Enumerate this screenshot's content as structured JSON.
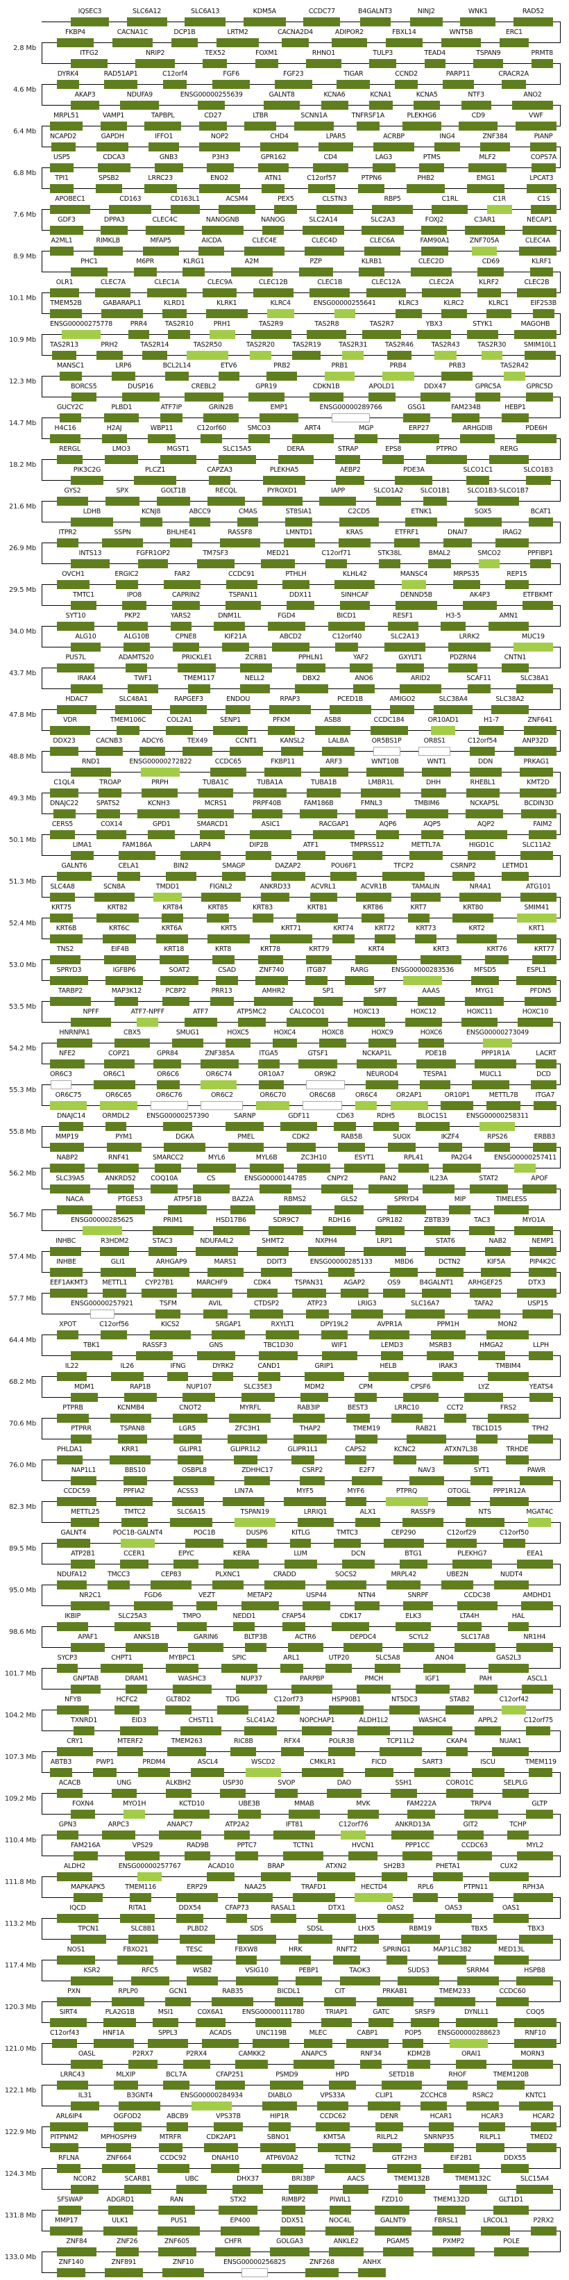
{
  "colors": {
    "gene": "#5f7f1f",
    "highlight": "#a3cd48",
    "outline_border": "#aaaaaa",
    "line": "#000000"
  },
  "gene_styles": {
    "highlight": [
      "C1R",
      "ZNF705A",
      "KLRC4",
      "ENSG00000255641",
      "ENSG00000275778",
      "PRH1",
      "TAS2R50",
      "TAS2R20",
      "TAS2R31",
      "TAS2R43",
      "TAS2R30",
      "PRB1",
      "PRB4",
      "TAS2R42",
      "SMCO2",
      "MANSC4",
      "MUC19",
      "OR10AD1",
      "ENSG00000272822",
      "TMDD1",
      "SMIM41",
      "ENSG00000283536",
      "ATF7-NPFF",
      "ENSG00000273049",
      "OR6C74",
      "OR6C75",
      "OR6C65",
      "OR6C70",
      "OR6C4",
      "OR2AP1",
      "ENSG00000258311",
      "ENSG00000257411",
      "ENSG00000285625",
      "PTPRQ",
      "TSPAN19",
      "MGAT4C",
      "POC1B-GALNT4",
      "C12orf42",
      "WSCD2",
      "MYO1H",
      "C12orf76",
      "ENSG00000257767",
      "HECTD4",
      "ENSG00000288623",
      "ENSG00000284934"
    ],
    "outline": [
      "ENSG00000289766",
      "OR5BS1P",
      "OR8S1",
      "OR6C3",
      "OR9K2",
      "OR6C76",
      "OR6C2",
      "OR6C68",
      "ENSG00000257921",
      "ENSG00000256825"
    ]
  },
  "mb_labels": [
    "2.8 Mb",
    "4.6 Mb",
    "6.4 Mb",
    "6.8 Mb",
    "7.6 Mb",
    "8.9 Mb",
    "10.1 Mb",
    "10.9 Mb",
    "12.3 Mb",
    "14.7 Mb",
    "18.2 Mb",
    "21.6 Mb",
    "26.9 Mb",
    "29.5 Mb",
    "34.0 Mb",
    "43.7 Mb",
    "47.8 Mb",
    "48.8 Mb",
    "49.3 Mb",
    "50.1 Mb",
    "51.3 Mb",
    "52.4 Mb",
    "53.0 Mb",
    "53.5 Mb",
    "54.2 Mb",
    "55.3 Mb",
    "55.8 Mb",
    "56.2 Mb",
    "56.7 Mb",
    "57.4 Mb",
    "57.7 Mb",
    "64.4 Mb",
    "68.2 Mb",
    "70.6 Mb",
    "76.0 Mb",
    "82.3 Mb",
    "89.5 Mb",
    "95.0 Mb",
    "98.6 Mb",
    "101.7 Mb",
    "104.2 Mb",
    "107.3 Mb",
    "109.2 Mb",
    "110.4 Mb",
    "111.8 Mb",
    "113.2 Mb",
    "117.4 Mb",
    "120.3 Mb",
    "121.0 Mb",
    "122.1 Mb",
    "122.9 Mb",
    "124.3 Mb",
    "131.8 Mb",
    "133.0 Mb"
  ],
  "rows": [
    [
      "IQSEC3",
      "SLC6A12",
      "SLC6A13",
      "KDM5A",
      "CCDC77",
      "B4GALNT3",
      "NINJ2",
      "WNK1",
      "RAD52"
    ],
    [
      "FKBP4",
      "CACNA1C",
      "DCP1B",
      "LRTM2",
      "CACNA2D4",
      "ADIPOR2",
      "FBXL14",
      "WNT5B",
      "ERC1"
    ],
    [
      "ITFG2",
      "NRIP2",
      "TEX52",
      "FOXM1",
      "RHNO1",
      "TULP3",
      "TEAD4",
      "TSPAN9",
      "PRMT8"
    ],
    [
      "DYRK4",
      "RAD51AP1",
      "C12orf4",
      "FGF6",
      "FGF23",
      "TIGAR",
      "CCND2",
      "PARP11",
      "CRACR2A"
    ],
    [
      "AKAP3",
      "NDUFA9",
      "ENSG00000255639",
      "GALNT8",
      "KCNA6",
      "KCNA1",
      "KCNA5",
      "NTF3",
      "ANO2"
    ],
    [
      "MRPL51",
      "VAMP1",
      "TAPBPL",
      "CD27",
      "LTBR",
      "SCNN1A",
      "TNFRSF1A",
      "PLEKHG6",
      "CD9",
      "VWF"
    ],
    [
      "NCAPD2",
      "GAPDH",
      "IFFO1",
      "NOP2",
      "CHD4",
      "LPAR5",
      "ACRBP",
      "ING4",
      "ZNF384",
      "PIANP"
    ],
    [
      "USP5",
      "CDCA3",
      "GNB3",
      "P3H3",
      "GPR162",
      "CD4",
      "LAG3",
      "PTMS",
      "MLF2",
      "COPS7A"
    ],
    [
      "TPI1",
      "SPSB2",
      "LRRC23",
      "ENO2",
      "ATN1",
      "C12orf57",
      "PTPN6",
      "PHB2",
      "EMG1",
      "LPCAT3"
    ],
    [
      "APOBEC1",
      "CD163",
      "CD163L1",
      "ACSM4",
      "PEX5",
      "CLSTN3",
      "RBP5",
      "C1RL",
      "C1R",
      "C1S"
    ],
    [
      "GDF3",
      "DPPA3",
      "CLEC4C",
      "NANOGNB",
      "NANOG",
      "SLC2A14",
      "SLC2A3",
      "FOXJ2",
      "C3AR1",
      "NECAP1"
    ],
    [
      "A2ML1",
      "RIMKLB",
      "MFAP5",
      "AICDA",
      "CLEC4E",
      "CLEC4D",
      "CLEC6A",
      "FAM90A1",
      "ZNF705A",
      "CLEC4A"
    ],
    [
      "PHC1",
      "M6PR",
      "KLRG1",
      "A2M",
      "PZP",
      "KLRB1",
      "CLEC2D",
      "CD69",
      "KLRF1"
    ],
    [
      "OLR1",
      "CLEC7A",
      "CLEC1A",
      "CLEC9A",
      "CLEC12B",
      "CLEC1B",
      "CLEC12A",
      "CLEC2A",
      "KLRF2",
      "CLEC2B"
    ],
    [
      "TMEM52B",
      "GABARAPL1",
      "KLRD1",
      "KLRK1",
      "KLRC4",
      "ENSG00000255641",
      "KLRC3",
      "KLRC2",
      "KLRC1",
      "EIF2S3B"
    ],
    [
      "ENSG00000275778",
      "PRR4",
      "TAS2R10",
      "PRH1",
      "TAS2R9",
      "TAS2R8",
      "TAS2R7",
      "YBX3",
      "STYK1",
      "MAGOHB"
    ],
    [
      "TAS2R13",
      "PRH2",
      "TAS2R14",
      "TAS2R50",
      "TAS2R20",
      "TAS2R19",
      "TAS2R31",
      "TAS2R46",
      "TAS2R43",
      "TAS2R30",
      "SMIM10L1"
    ],
    [
      "MANSC1",
      "LRP6",
      "BCL2L14",
      "ETV6",
      "PRB2",
      "PRB1",
      "PRB4",
      "PRB3",
      "TAS2R42"
    ],
    [
      "BORCS5",
      "DUSP16",
      "CREBL2",
      "GPR19",
      "CDKN1B",
      "APOLD1",
      "DDX47",
      "GPRC5A",
      "GPRC5D"
    ],
    [
      "GUCY2C",
      "PLBD1",
      "ATF7IP",
      "GRIN2B",
      "EMP1",
      "ENSG00000289766",
      "GSG1",
      "FAM234B",
      "HEBP1"
    ],
    [
      "H4C16",
      "H2AJ",
      "WBP11",
      "C12orf60",
      "SMCO3",
      "ART4",
      "MGP",
      "ERP27",
      "ARHGDIB",
      "PDE6H"
    ],
    [
      "RERGL",
      "LMO3",
      "MGST1",
      "SLC15A5",
      "DERA",
      "STRAP",
      "EPS8",
      "PTPRO",
      "RERG"
    ],
    [
      "PIK3C2G",
      "PLCZ1",
      "CAPZA3",
      "PLEKHA5",
      "AEBP2",
      "PDE3A",
      "SLCO1C1",
      "SLCO1B3"
    ],
    [
      "GYS2",
      "SPX",
      "GOLT1B",
      "RECQL",
      "PYROXD1",
      "IAPP",
      "SLCO1A2",
      "SLCO1B1",
      "SLCO1B3-SLCO1B7"
    ],
    [
      "LDHB",
      "KCNJ8",
      "ABCC9",
      "CMAS",
      "ST8SIA1",
      "C2CD5",
      "ETNK1",
      "SOX5",
      "BCAT1"
    ],
    [
      "ITPR2",
      "SSPN",
      "BHLHE41",
      "RASSF8",
      "LMNTD1",
      "KRAS",
      "ETFRF1",
      "DNAI7",
      "IRAG2"
    ],
    [
      "INTS13",
      "FGFR1OP2",
      "TM7SF3",
      "MED21",
      "C12orf71",
      "STK38L",
      "BMAL2",
      "SMCO2",
      "PPFIBP1"
    ],
    [
      "OVCH1",
      "ERGIC2",
      "FAR2",
      "CCDC91",
      "PTHLH",
      "KLHL42",
      "MANSC4",
      "MRPS35",
      "REP15"
    ],
    [
      "TMTC1",
      "IPO8",
      "CAPRIN2",
      "TSPAN11",
      "DDX11",
      "SINHCAF",
      "DENND5B",
      "AK4P3",
      "ETFBKMT"
    ],
    [
      "SYT10",
      "PKP2",
      "YARS2",
      "DNM1L",
      "FGD4",
      "BICD1",
      "RESF1",
      "H3-5",
      "AMN1"
    ],
    [
      "ALG10",
      "ALG10B",
      "CPNE8",
      "KIF21A",
      "ABCD2",
      "C12orf40",
      "SLC2A13",
      "LRRK2",
      "MUC19"
    ],
    [
      "PUS7L",
      "ADAMTS20",
      "PRICKLE1",
      "ZCRB1",
      "PPHLN1",
      "YAF2",
      "GXYLT1",
      "PDZRN4",
      "CNTN1"
    ],
    [
      "IRAK4",
      "TWF1",
      "TMEM117",
      "NELL2",
      "DBX2",
      "ANO6",
      "ARID2",
      "SCAF11",
      "SLC38A1"
    ],
    [
      "HDAC7",
      "SLC48A1",
      "RAPGEF3",
      "ENDOU",
      "RPAP3",
      "PCED1B",
      "AMIGO2",
      "SLC38A4",
      "SLC38A2"
    ],
    [
      "VDR",
      "TMEM106C",
      "COL2A1",
      "SENP1",
      "PFKM",
      "ASB8",
      "CCDC184",
      "OR10AD1",
      "H1-7",
      "ZNF641"
    ],
    [
      "DDX23",
      "CACNB3",
      "ADCY6",
      "TEX49",
      "CCNT1",
      "KANSL2",
      "LALBA",
      "OR5BS1P",
      "OR8S1",
      "C12orf54",
      "ANP32D"
    ],
    [
      "RND1",
      "ENSG00000272822",
      "CCDC65",
      "FKBP11",
      "ARF3",
      "WNT10B",
      "WNT1",
      "DDN",
      "PRKAG1"
    ],
    [
      "C1QL4",
      "TROAP",
      "PRPH",
      "TUBA1C",
      "TUBA1A",
      "TUBA1B",
      "LMBR1L",
      "DHH",
      "RHEBL1",
      "KMT2D"
    ],
    [
      "DNAJC22",
      "SPATS2",
      "KCNH3",
      "MCRS1",
      "PRPF40B",
      "FAM186B",
      "FMNL3",
      "TMBIM6",
      "NCKAP5L",
      "BCDIN3D"
    ],
    [
      "CERS5",
      "COX14",
      "GPD1",
      "SMARCD1",
      "ASIC1",
      "RACGAP1",
      "AQP6",
      "AQP5",
      "AQP2",
      "FAIM2"
    ],
    [
      "LIMA1",
      "FAM186A",
      "LARP4",
      "DIP2B",
      "ATF1",
      "TMPRSS12",
      "METTL7A",
      "HIGD1C",
      "SLC11A2"
    ],
    [
      "GALNT6",
      "CELA1",
      "BIN2",
      "SMAGP",
      "DAZAP2",
      "POU6F1",
      "TFCP2",
      "CSRNP2",
      "LETMD1"
    ],
    [
      "SLC4A8",
      "SCN8A",
      "TMDD1",
      "FIGNL2",
      "ANKRD33",
      "ACVRL1",
      "ACVR1B",
      "TAMALIN",
      "NR4A1",
      "ATG101"
    ],
    [
      "KRT75",
      "KRT82",
      "KRT84",
      "KRT85",
      "KRT83",
      "KRT81",
      "KRT86",
      "KRT7",
      "KRT80",
      "SMIM41"
    ],
    [
      "KRT6B",
      "KRT6C",
      "KRT6A",
      "KRT5",
      "KRT71",
      "KRT74",
      "KRT72",
      "KRT73",
      "KRT2",
      "KRT1"
    ],
    [
      "TNS2",
      "EIF4B",
      "KRT18",
      "KRT8",
      "KRT78",
      "KRT79",
      "KRT4",
      "KRT3",
      "KRT76",
      "KRT77"
    ],
    [
      "SPRYD3",
      "IGFBP6",
      "SOAT2",
      "CSAD",
      "ZNF740",
      "ITGB7",
      "RARG",
      "ENSG00000283536",
      "MFSD5",
      "ESPL1"
    ],
    [
      "TARBP2",
      "MAP3K12",
      "PCBP2",
      "PRR13",
      "AMHR2",
      "SP1",
      "SP7",
      "AAAS",
      "MYG1",
      "PFDN5"
    ],
    [
      "NPFF",
      "ATF7-NPFF",
      "ATF7",
      "ATP5MC2",
      "CALCOCO1",
      "HOXC13",
      "HOXC12",
      "HOXC11",
      "HOXC10"
    ],
    [
      "HNRNPA1",
      "CBX5",
      "SMUG1",
      "HOXC5",
      "HOXC4",
      "HOXC8",
      "HOXC9",
      "HOXC6",
      "ENSG00000273049"
    ],
    [
      "NFE2",
      "COPZ1",
      "GPR84",
      "ZNF385A",
      "ITGA5",
      "GTSF1",
      "NCKAP1L",
      "PDE1B",
      "PPP1R1A",
      "LACRT"
    ],
    [
      "OR6C3",
      "OR6C1",
      "OR6C6",
      "OR6C74",
      "OR10A7",
      "OR9K2",
      "NEUROD4",
      "TESPA1",
      "MUCL1",
      "DCD"
    ],
    [
      "OR6C75",
      "OR6C65",
      "OR6C76",
      "OR6C2",
      "OR6C70",
      "OR6C68",
      "OR6C4",
      "OR2AP1",
      "OR10P1",
      "METTL7B",
      "ITGA7"
    ],
    [
      "DNAJC14",
      "ORMDL2",
      "ENSG00000257390",
      "SARNP",
      "GDF11",
      "CD63",
      "RDH5",
      "BLOC1S1",
      "ENSG00000258311"
    ],
    [
      "MMP19",
      "PYM1",
      "DGKA",
      "PMEL",
      "CDK2",
      "RAB5B",
      "SUOX",
      "IKZF4",
      "RPS26",
      "ERBB3"
    ],
    [
      "NABP2",
      "RNF41",
      "SMARCC2",
      "MYL6",
      "MYL6B",
      "ZC3H10",
      "ESYT1",
      "RPL41",
      "PA2G4",
      "ENSG00000257411"
    ],
    [
      "SLC39A5",
      "ANKRD52",
      "COQ10A",
      "CS",
      "ENSG00000144785",
      "CNPY2",
      "PAN2",
      "IL23A",
      "STAT2",
      "APOF"
    ],
    [
      "NACA",
      "PTGES3",
      "ATP5F1B",
      "BAZ2A",
      "RBMS2",
      "GLS2",
      "SPRYD4",
      "MIP",
      "TIMELESS"
    ],
    [
      "ENSG00000285625",
      "PRIM1",
      "HSD17B6",
      "SDR9C7",
      "RDH16",
      "GPR182",
      "ZBTB39",
      "TAC3",
      "MYO1A"
    ],
    [
      "INHBC",
      "R3HDM2",
      "STAC3",
      "NDUFA4L2",
      "SHMT2",
      "NXPH4",
      "LRP1",
      "STAT6",
      "NAB2",
      "NEMP1"
    ],
    [
      "INHBE",
      "GLI1",
      "ARHGAP9",
      "MARS1",
      "DDIT3",
      "ENSG00000285133",
      "MBD6",
      "DCTN2",
      "KIF5A",
      "PIP4K2C"
    ],
    [
      "EEF1AKMT3",
      "METTL1",
      "CYP27B1",
      "MARCHF9",
      "CDK4",
      "TSPAN31",
      "AGAP2",
      "OS9",
      "B4GALNT1",
      "ARHGEF25",
      "DTX3"
    ],
    [
      "ENSG00000257921",
      "TSFM",
      "AVIL",
      "CTDSP2",
      "ATP23",
      "LRIG3",
      "SLC16A7",
      "TAFA2",
      "USP15"
    ],
    [
      "XPOT",
      "C12orf56",
      "KICS2",
      "SRGAP1",
      "RXYLT1",
      "DPY19L2",
      "AVPR1A",
      "PPM1H",
      "MON2"
    ],
    [
      "TBK1",
      "RASSF3",
      "GNS",
      "TBC1D30",
      "WIF1",
      "LEMD3",
      "MSRB3",
      "HMGA2",
      "LLPH"
    ],
    [
      "IL22",
      "IL26",
      "IFNG",
      "DYRK2",
      "CAND1",
      "GRIP1",
      "HELB",
      "IRAK3",
      "TMBIM4"
    ],
    [
      "MDM1",
      "RAP1B",
      "NUP107",
      "SLC35E3",
      "MDM2",
      "CPM",
      "CPSF6",
      "LYZ",
      "YEATS4"
    ],
    [
      "PTPRB",
      "KCNMB4",
      "CNOT2",
      "MYRFL",
      "RAB3IP",
      "BEST3",
      "LRRC10",
      "CCT2",
      "FRS2"
    ],
    [
      "PTPRR",
      "TSPAN8",
      "LGR5",
      "ZFC3H1",
      "THAP2",
      "TMEM19",
      "RAB21",
      "TBC1D15",
      "TPH2"
    ],
    [
      "PHLDA1",
      "KRR1",
      "GLIPR1",
      "GLIPR1L2",
      "GLIPR1L1",
      "CAPS2",
      "KCNC2",
      "ATXN7L3B",
      "TRHDE"
    ],
    [
      "NAP1L1",
      "BBS10",
      "OSBPL8",
      "ZDHHC17",
      "CSRP2",
      "E2F7",
      "NAV3",
      "SYT1",
      "PAWR"
    ],
    [
      "CCDC59",
      "PPFIA2",
      "ACSS3",
      "LIN7A",
      "MYF5",
      "MYF6",
      "PTPRQ",
      "OTOGL",
      "PPP1R12A"
    ],
    [
      "METTL25",
      "TMTC2",
      "SLC6A15",
      "TSPAN19",
      "LRRIQ1",
      "ALX1",
      "RASSF9",
      "NTS",
      "MGAT4C"
    ],
    [
      "GALNT4",
      "POC1B-GALNT4",
      "POC1B",
      "DUSP6",
      "KITLG",
      "TMTC3",
      "CEP290",
      "C12orf29",
      "C12orf50"
    ],
    [
      "ATP2B1",
      "CCER1",
      "EPYC",
      "KERA",
      "LUM",
      "DCN",
      "BTG1",
      "PLEKHG7",
      "EEA1"
    ],
    [
      "NDUFA12",
      "TMCC3",
      "CEP83",
      "PLXNC1",
      "CRADD",
      "SOCS2",
      "MRPL42",
      "UBE2N",
      "NUDT4"
    ],
    [
      "NR2C1",
      "FGD6",
      "VEZT",
      "METAP2",
      "USP44",
      "NTN4",
      "SNRPF",
      "CCDC38",
      "AMDHD1"
    ],
    [
      "IKBIP",
      "SLC25A3",
      "TMPO",
      "NEDD1",
      "CFAP54",
      "CDK17",
      "ELK3",
      "LTA4H",
      "HAL"
    ],
    [
      "APAF1",
      "ANKS1B",
      "GARIN6",
      "BLTP3B",
      "ACTR6",
      "DEPDC4",
      "SCYL2",
      "SLC17A8",
      "NR1H4"
    ],
    [
      "SYCP3",
      "CHPT1",
      "MYBPC1",
      "SPIC",
      "ARL1",
      "UTP20",
      "SLC5A8",
      "ANO4",
      "GAS2L3"
    ],
    [
      "GNPTAB",
      "DRAM1",
      "WASHC3",
      "NUP37",
      "PARPBP",
      "PMCH",
      "IGF1",
      "PAH",
      "ASCL1"
    ],
    [
      "NFYB",
      "HCFC2",
      "GLT8D2",
      "TDG",
      "C12orf73",
      "HSP90B1",
      "NT5DC3",
      "STAB2",
      "C12orf42"
    ],
    [
      "TXNRD1",
      "EID3",
      "CHST11",
      "SLC41A2",
      "NOPCHAP1",
      "ALDH1L2",
      "WASHC4",
      "APPL2",
      "C12orf75"
    ],
    [
      "CRY1",
      "MTERF2",
      "TMEM263",
      "RIC8B",
      "RFX4",
      "POLR3B",
      "TCP11L2",
      "CKAP4",
      "NUAK1"
    ],
    [
      "ABTB3",
      "PWP1",
      "PRDM4",
      "ASCL4",
      "WSCD2",
      "CMKLR1",
      "FICD",
      "SART3",
      "ISCU",
      "TMEM119"
    ],
    [
      "ACACB",
      "UNG",
      "ALKBH2",
      "USP30",
      "SVOP",
      "DAO",
      "SSH1",
      "CORO1C",
      "SELPLG"
    ],
    [
      "FOXN4",
      "MYO1H",
      "KCTD10",
      "UBE3B",
      "MMAB",
      "MVK",
      "FAM222A",
      "TRPV4",
      "GLTP"
    ],
    [
      "GPN3",
      "ARPC3",
      "ANAPC7",
      "ATP2A2",
      "IFT81",
      "C12orf76",
      "ANKRD13A",
      "GIT2",
      "TCHP"
    ],
    [
      "FAM216A",
      "VPS29",
      "RAD9B",
      "PPTC7",
      "TCTN1",
      "HVCN1",
      "PPP1CC",
      "CCDC63",
      "MYL2"
    ],
    [
      "ALDH2",
      "ENSG00000257767",
      "ACAD10",
      "BRAP",
      "ATXN2",
      "SH2B3",
      "PHETA1",
      "CUX2"
    ],
    [
      "MAPKAPK5",
      "TMEM116",
      "ERP29",
      "NAA25",
      "TRAFD1",
      "HECTD4",
      "RPL6",
      "PTPN11",
      "RPH3A"
    ],
    [
      "IQCD",
      "RITA1",
      "DDX54",
      "CFAP73",
      "RASAL1",
      "DTX1",
      "OAS2",
      "OAS3",
      "OAS1"
    ],
    [
      "TPCN1",
      "SLC8B1",
      "PLBD2",
      "SDS",
      "SDSL",
      "LHX5",
      "RBM19",
      "TBX5",
      "TBX3"
    ],
    [
      "NOS1",
      "FBXO21",
      "TESC",
      "FBXW8",
      "HRK",
      "RNFT2",
      "SPRING1",
      "MAP1LC3B2",
      "MED13L"
    ],
    [
      "KSR2",
      "RFC5",
      "WSB2",
      "VSIG10",
      "PEBP1",
      "TAOK3",
      "SUDS3",
      "SRRM4",
      "HSPB8"
    ],
    [
      "PXN",
      "RPLP0",
      "GCN1",
      "RAB35",
      "BICDL1",
      "CIT",
      "PRKAB1",
      "TMEM233",
      "CCDC60"
    ],
    [
      "SIRT4",
      "PLA2G1B",
      "MSI1",
      "COX6A1",
      "ENSG00000111780",
      "TRIAP1",
      "GATC",
      "SRSF9",
      "DYNLL1",
      "COQ5"
    ],
    [
      "C12orf43",
      "HNF1A",
      "SPPL3",
      "ACADS",
      "UNC119B",
      "MLEC",
      "CABP1",
      "POP5",
      "ENSG00000288623",
      "RNF10"
    ],
    [
      "OASL",
      "P2RX7",
      "P2RX4",
      "CAMKK2",
      "ANAPC5",
      "RNF34",
      "KDM2B",
      "ORAI1",
      "MORN3"
    ],
    [
      "LRRC43",
      "MLXIP",
      "BCL7A",
      "CFAP251",
      "PSMD9",
      "HPD",
      "SETD1B",
      "RHOF",
      "TMEM120B"
    ],
    [
      "IL31",
      "B3GNT4",
      "ENSG00000284934",
      "DIABLO",
      "VPS33A",
      "CLIP1",
      "ZCCHC8",
      "RSRC2",
      "KNTC1"
    ],
    [
      "ARL6IP4",
      "OGFOD2",
      "ABCB9",
      "VPS37B",
      "HIP1R",
      "CCDC62",
      "DENR",
      "HCAR1",
      "HCAR3",
      "HCAR2"
    ],
    [
      "PITPNM2",
      "MPHOSPH9",
      "MTRFR",
      "CDK2AP1",
      "SBNO1",
      "KMT5A",
      "RILPL2",
      "SNRNP35",
      "RILPL1",
      "TMED2"
    ],
    [
      "RFLNA",
      "ZNF664",
      "CCDC92",
      "DNAH10",
      "ATP6V0A2",
      "TCTN2",
      "GTF2H3",
      "EIF2B1",
      "DDX55"
    ],
    [
      "NCOR2",
      "SCARB1",
      "UBC",
      "DHX37",
      "BRI3BP",
      "AACS",
      "TMEM132B",
      "TMEM132C",
      "SLC15A4"
    ],
    [
      "SFSWAP",
      "ADGRD1",
      "RAN",
      "STX2",
      "RIMBP2",
      "PIWIL1",
      "FZD10",
      "TMEM132D",
      "GLT1D1"
    ],
    [
      "MMP17",
      "ULK1",
      "PUS1",
      "EP400",
      "DDX51",
      "NOC4L",
      "GALNT9",
      "FBRSL1",
      "LRCOL1",
      "P2RX2"
    ],
    [
      "ZNF84",
      "ZNF26",
      "ZNF605",
      "CHFR",
      "GOLGA3",
      "ANKLE2",
      "PGAM5",
      "PXMP2",
      "POLE"
    ],
    [
      "ZNF140",
      "ZNF891",
      "ZNF10",
      "ENSG00000256825",
      "ZNF268",
      "ANHX"
    ]
  ]
}
